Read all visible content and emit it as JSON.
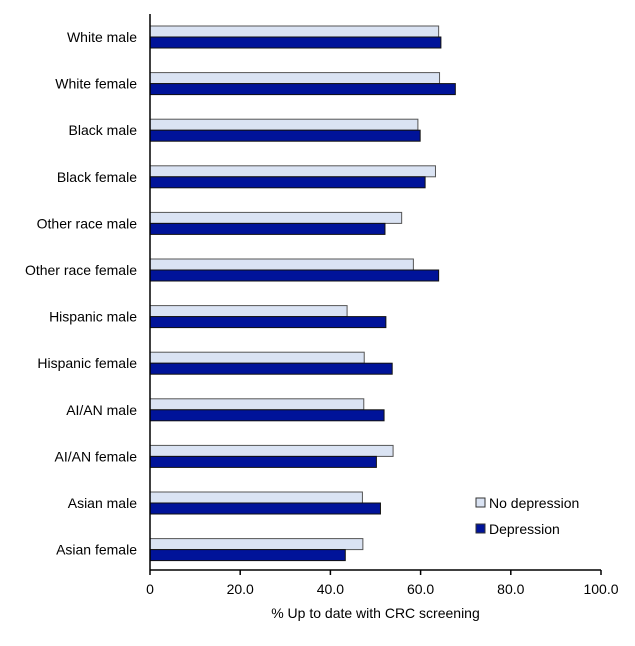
{
  "chart_data": {
    "type": "bar",
    "orientation": "horizontal",
    "categories": [
      "White male",
      "White female",
      "Black male",
      "Black female",
      "Other race male",
      "Other race female",
      "Hispanic male",
      "Hispanic female",
      "AI/AN male",
      "AI/AN female",
      "Asian male",
      "Asian female"
    ],
    "series": [
      {
        "name": "No depression",
        "color": "#dae3f3",
        "values": [
          64.0,
          64.2,
          59.4,
          63.3,
          55.8,
          58.4,
          43.7,
          47.5,
          47.4,
          53.9,
          47.1,
          47.2
        ]
      },
      {
        "name": "Depression",
        "color": "#001399",
        "values": [
          64.5,
          67.7,
          59.9,
          61.0,
          52.1,
          64.0,
          52.3,
          53.7,
          51.9,
          50.2,
          51.1,
          43.3
        ]
      }
    ],
    "xlabel": "% Up to date with CRC screening",
    "xlim": [
      0,
      100
    ],
    "xticks": [
      "0",
      "20.0",
      "40.0",
      "60.0",
      "80.0",
      "100.0"
    ],
    "grid": false,
    "legend_position": "bottom-right"
  }
}
